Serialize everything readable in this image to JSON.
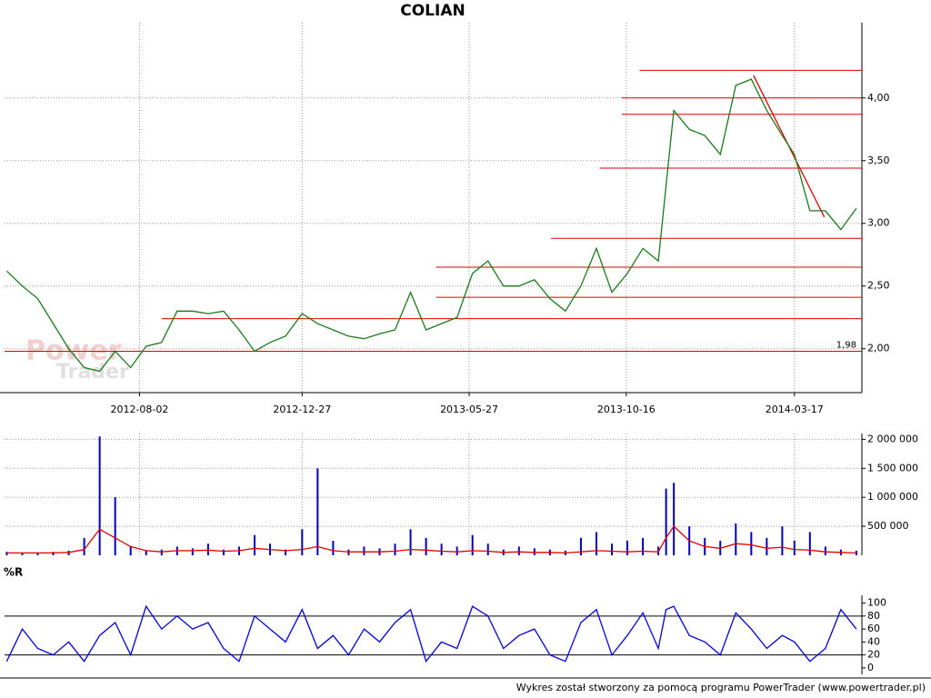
{
  "chart_data": [
    {
      "type": "line",
      "title": "COLIAN",
      "x": [
        "2012-04-04",
        "2012-04-18",
        "2012-05-02",
        "2012-05-16",
        "2012-05-30",
        "2012-06-13",
        "2012-06-27",
        "2012-07-11",
        "2012-07-25",
        "2012-08-08",
        "2012-08-22",
        "2012-09-05",
        "2012-09-19",
        "2012-10-03",
        "2012-10-17",
        "2012-10-31",
        "2012-11-14",
        "2012-11-28",
        "2012-12-12",
        "2012-12-27",
        "2013-01-10",
        "2013-01-24",
        "2013-02-07",
        "2013-02-21",
        "2013-03-07",
        "2013-03-21",
        "2013-04-04",
        "2013-04-18",
        "2013-05-02",
        "2013-05-16",
        "2013-05-30",
        "2013-06-13",
        "2013-06-27",
        "2013-07-11",
        "2013-07-25",
        "2013-08-08",
        "2013-08-22",
        "2013-09-05",
        "2013-09-19",
        "2013-10-03",
        "2013-10-17",
        "2013-10-31",
        "2013-11-14",
        "2013-11-21",
        "2013-11-28",
        "2013-12-12",
        "2013-12-26",
        "2014-01-09",
        "2014-01-23",
        "2014-02-06",
        "2014-02-20",
        "2014-03-06",
        "2014-03-17",
        "2014-03-31",
        "2014-04-14",
        "2014-04-28",
        "2014-05-12"
      ],
      "series": [
        {
          "color": "#1a7a1a",
          "values": [
            2.62,
            2.5,
            2.4,
            2.2,
            2.0,
            1.85,
            1.82,
            1.98,
            1.85,
            2.02,
            2.05,
            2.3,
            2.3,
            2.28,
            2.3,
            2.15,
            1.98,
            2.05,
            2.1,
            2.28,
            2.2,
            2.15,
            2.1,
            2.08,
            2.12,
            2.15,
            2.45,
            2.15,
            2.2,
            2.25,
            2.6,
            2.7,
            2.5,
            2.5,
            2.55,
            2.4,
            2.3,
            2.5,
            2.8,
            2.45,
            2.6,
            2.8,
            2.7,
            3.3,
            3.9,
            3.75,
            3.7,
            3.55,
            4.1,
            4.15,
            3.9,
            3.7,
            3.55,
            3.1,
            3.1,
            2.95,
            3.12
          ]
        }
      ],
      "levels": [
        {
          "value": 4.22,
          "from": "2013-10-28"
        },
        {
          "value": 4.0,
          "from": "2013-10-12"
        },
        {
          "value": 3.87,
          "from": "2013-10-12"
        },
        {
          "value": 3.44,
          "from": "2013-09-22"
        },
        {
          "value": 2.88,
          "from": "2013-08-09"
        },
        {
          "value": 2.65,
          "from": "2013-04-27"
        },
        {
          "value": 2.41,
          "from": "2013-04-27"
        },
        {
          "value": 2.24,
          "from": "2012-08-22"
        },
        {
          "value": 1.98,
          "from": "2012-04-02",
          "label": "1,98"
        }
      ],
      "level_color": "#e00000",
      "trendline": {
        "x": [
          "2014-02-08",
          "2014-04-13"
        ],
        "values": [
          4.18,
          3.05
        ]
      },
      "xlim": [
        "2012-04-02",
        "2014-05-17"
      ],
      "xticks": [
        "2012-08-02",
        "2012-12-27",
        "2013-05-27",
        "2013-10-16",
        "2014-03-17"
      ],
      "ylim": [
        1.65,
        4.6
      ],
      "yticks": [
        {
          "value": 2,
          "label": "2,00"
        },
        {
          "value": 2.5,
          "label": "2,50"
        },
        {
          "value": 3,
          "label": "3,00"
        },
        {
          "value": 3.5,
          "label": "3,50"
        },
        {
          "value": 4,
          "label": "4,00"
        }
      ],
      "grid": true
    },
    {
      "type": "bar",
      "x": [
        "2012-04-04",
        "2012-04-18",
        "2012-05-02",
        "2012-05-16",
        "2012-05-30",
        "2012-06-13",
        "2012-06-27",
        "2012-07-11",
        "2012-07-25",
        "2012-08-08",
        "2012-08-22",
        "2012-09-05",
        "2012-09-19",
        "2012-10-03",
        "2012-10-17",
        "2012-10-31",
        "2012-11-14",
        "2012-11-28",
        "2012-12-12",
        "2012-12-27",
        "2013-01-10",
        "2013-01-24",
        "2013-02-07",
        "2013-02-21",
        "2013-03-07",
        "2013-03-21",
        "2013-04-04",
        "2013-04-18",
        "2013-05-02",
        "2013-05-16",
        "2013-05-30",
        "2013-06-13",
        "2013-06-27",
        "2013-07-11",
        "2013-07-25",
        "2013-08-08",
        "2013-08-22",
        "2013-09-05",
        "2013-09-19",
        "2013-10-03",
        "2013-10-17",
        "2013-10-31",
        "2013-11-14",
        "2013-11-21",
        "2013-11-28",
        "2013-12-12",
        "2013-12-26",
        "2014-01-09",
        "2014-01-23",
        "2014-02-06",
        "2014-02-20",
        "2014-03-06",
        "2014-03-17",
        "2014-03-31",
        "2014-04-14",
        "2014-04-28",
        "2014-05-12"
      ],
      "series": [
        {
          "color": "#0000c0",
          "values": [
            60000,
            40000,
            50000,
            60000,
            80000,
            300000,
            2050000,
            1000000,
            150000,
            80000,
            100000,
            150000,
            120000,
            200000,
            100000,
            150000,
            350000,
            200000,
            100000,
            450000,
            1500000,
            250000,
            100000,
            150000,
            120000,
            200000,
            450000,
            300000,
            200000,
            150000,
            350000,
            200000,
            100000,
            150000,
            120000,
            100000,
            80000,
            300000,
            400000,
            200000,
            250000,
            300000,
            150000,
            1150000,
            1250000,
            500000,
            300000,
            250000,
            550000,
            400000,
            300000,
            500000,
            250000,
            400000,
            150000,
            100000,
            80000
          ]
        },
        {
          "color": "#e00000",
          "kind": "line",
          "values": [
            40000,
            40000,
            40000,
            40000,
            50000,
            100000,
            450000,
            300000,
            150000,
            80000,
            60000,
            80000,
            80000,
            90000,
            70000,
            80000,
            120000,
            100000,
            80000,
            100000,
            150000,
            80000,
            60000,
            60000,
            60000,
            70000,
            100000,
            90000,
            70000,
            60000,
            80000,
            70000,
            50000,
            60000,
            50000,
            50000,
            40000,
            60000,
            80000,
            70000,
            60000,
            70000,
            60000,
            300000,
            500000,
            250000,
            150000,
            120000,
            200000,
            180000,
            120000,
            140000,
            100000,
            90000,
            60000,
            50000,
            40000
          ]
        }
      ],
      "xlim": [
        "2012-04-02",
        "2014-05-17"
      ],
      "ylim": [
        0,
        2100000
      ],
      "yticks": [
        {
          "value": 500000,
          "label": "500 000"
        },
        {
          "value": 1000000,
          "label": "1 000 000"
        },
        {
          "value": 1500000,
          "label": "1 500 000"
        },
        {
          "value": 2000000,
          "label": "2 000 000"
        }
      ],
      "grid": true
    },
    {
      "type": "line",
      "title": "%R",
      "x": [
        "2012-04-04",
        "2012-04-18",
        "2012-05-02",
        "2012-05-16",
        "2012-05-30",
        "2012-06-13",
        "2012-06-27",
        "2012-07-11",
        "2012-07-25",
        "2012-08-08",
        "2012-08-22",
        "2012-09-05",
        "2012-09-19",
        "2012-10-03",
        "2012-10-17",
        "2012-10-31",
        "2012-11-14",
        "2012-11-28",
        "2012-12-12",
        "2012-12-27",
        "2013-01-10",
        "2013-01-24",
        "2013-02-07",
        "2013-02-21",
        "2013-03-07",
        "2013-03-21",
        "2013-04-04",
        "2013-04-18",
        "2013-05-02",
        "2013-05-16",
        "2013-05-30",
        "2013-06-13",
        "2013-06-27",
        "2013-07-11",
        "2013-07-25",
        "2013-08-08",
        "2013-08-22",
        "2013-09-05",
        "2013-09-19",
        "2013-10-03",
        "2013-10-17",
        "2013-10-31",
        "2013-11-14",
        "2013-11-21",
        "2013-11-28",
        "2013-12-12",
        "2013-12-26",
        "2014-01-09",
        "2014-01-23",
        "2014-02-06",
        "2014-02-20",
        "2014-03-06",
        "2014-03-17",
        "2014-03-31",
        "2014-04-14",
        "2014-04-28",
        "2014-05-12"
      ],
      "series": [
        {
          "color": "#0000e0",
          "values": [
            10,
            60,
            30,
            20,
            40,
            10,
            50,
            70,
            20,
            95,
            60,
            80,
            60,
            70,
            30,
            10,
            80,
            60,
            40,
            90,
            30,
            50,
            20,
            60,
            40,
            70,
            90,
            10,
            40,
            30,
            95,
            80,
            30,
            50,
            60,
            20,
            10,
            70,
            90,
            20,
            50,
            85,
            30,
            90,
            95,
            50,
            40,
            20,
            85,
            60,
            30,
            50,
            40,
            10,
            30,
            90,
            60
          ]
        }
      ],
      "hlines": [
        20,
        80
      ],
      "xlim": [
        "2012-04-02",
        "2014-05-17"
      ],
      "ylim": [
        -10,
        112
      ],
      "yticks": [
        0,
        20,
        40,
        60,
        80,
        100
      ],
      "grid": false
    }
  ],
  "watermark": [
    "Power",
    "Trader"
  ],
  "footer": "Wykres został stworzony za pomocą programu PowerTrader (www.powertrader.pl)"
}
